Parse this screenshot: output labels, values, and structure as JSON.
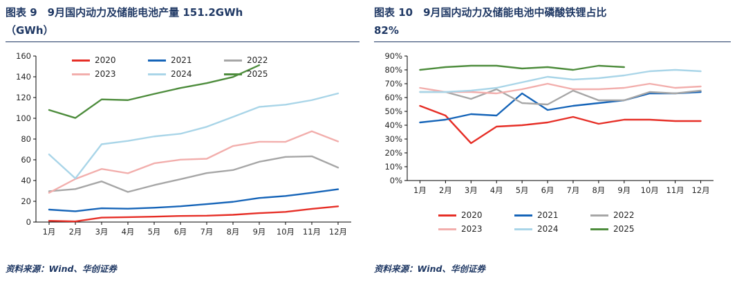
{
  "page": {
    "background": "#ffffff"
  },
  "colors": {
    "title_navy": "#1F3864",
    "axis_text": "#262626",
    "axis_line": "#000000"
  },
  "charts": [
    {
      "title_line1": "图表 9　9月国内动力及储能电池产量 151.2GWh",
      "title_line2": "（GWh）",
      "source": "资料来源：Wind、华创证券",
      "chart_data": {
        "type": "line",
        "categories": [
          "1月",
          "2月",
          "3月",
          "4月",
          "5月",
          "6月",
          "7月",
          "8月",
          "9月",
          "10月",
          "11月",
          "12月"
        ],
        "ylim": [
          0,
          160
        ],
        "y_ticks": [
          0,
          20,
          40,
          60,
          80,
          100,
          120,
          140,
          160
        ],
        "y_tick_labels": [
          "0",
          "20",
          "40",
          "60",
          "80",
          "100",
          "120",
          "140",
          "160"
        ],
        "grid": false,
        "legend_position": "top-inside",
        "series": [
          {
            "name": "2020",
            "color": "#E62E26",
            "values": [
              1.2,
              0.6,
              4.3,
              4.7,
              5.2,
              5.9,
              6.1,
              7.0,
              8.6,
              9.8,
              12.7,
              15.1
            ]
          },
          {
            "name": "2021",
            "color": "#1564B8",
            "values": [
              12.0,
              10.4,
              13.3,
              12.9,
              13.8,
              15.2,
              17.3,
              19.5,
              23.2,
              25.1,
              28.2,
              31.6
            ]
          },
          {
            "name": "2022",
            "color": "#A6A6A6",
            "values": [
              29.7,
              31.8,
              39.2,
              29.0,
              35.6,
              41.3,
              47.2,
              50.1,
              58.1,
              62.8,
              63.4,
              52.5
            ]
          },
          {
            "name": "2023",
            "color": "#F2AEAC",
            "values": [
              28.2,
              41.5,
              51.2,
              47.0,
              56.6,
              60.1,
              61.0,
              73.3,
              77.4,
              77.3,
              87.5,
              77.7
            ]
          },
          {
            "name": "2024",
            "color": "#A9D5E8",
            "values": [
              65.2,
              42.1,
              75.0,
              78.2,
              82.5,
              85.1,
              91.8,
              101.3,
              111.0,
              113.1,
              117.5,
              124.0
            ]
          },
          {
            "name": "2025",
            "color": "#4D8C3C",
            "values": [
              108.0,
              100.3,
              118.2,
              117.5,
              123.5,
              129.2,
              133.9,
              139.8,
              151.2,
              null,
              null,
              null
            ]
          }
        ]
      }
    },
    {
      "title_line1": "图表 10　9月国内动力及储能电池中磷酸铁锂占比",
      "title_line2": "82%",
      "source": "资料来源：Wind、华创证券",
      "chart_data": {
        "type": "line",
        "categories": [
          "1月",
          "2月",
          "3月",
          "4月",
          "5月",
          "6月",
          "7月",
          "8月",
          "9月",
          "10月",
          "11月",
          "12月"
        ],
        "ylim": [
          0,
          90
        ],
        "y_ticks": [
          0,
          10,
          20,
          30,
          40,
          50,
          60,
          70,
          80,
          90
        ],
        "y_tick_labels": [
          "0%",
          "10%",
          "20%",
          "30%",
          "40%",
          "50%",
          "60%",
          "70%",
          "80%",
          "90%"
        ],
        "grid": false,
        "legend_position": "bottom",
        "series": [
          {
            "name": "2020",
            "color": "#E62E26",
            "values": [
              54,
              47,
              27,
              39,
              40,
              42,
              46,
              41,
              44,
              44,
              43,
              43
            ]
          },
          {
            "name": "2021",
            "color": "#1564B8",
            "values": [
              42,
              44,
              48,
              47,
              63,
              51,
              54,
              56,
              58,
              63,
              63,
              64
            ]
          },
          {
            "name": "2022",
            "color": "#A6A6A6",
            "values": [
              64,
              64,
              59,
              66,
              56,
              55,
              65,
              58,
              58,
              64,
              63,
              65
            ]
          },
          {
            "name": "2023",
            "color": "#F2AEAC",
            "values": [
              67,
              64,
              64,
              63,
              66,
              70,
              66,
              66,
              67,
              70,
              67,
              68
            ]
          },
          {
            "name": "2024",
            "color": "#A9D5E8",
            "values": [
              64,
              64,
              65,
              67,
              71,
              75,
              73,
              74,
              76,
              79,
              80,
              79
            ]
          },
          {
            "name": "2025",
            "color": "#4D8C3C",
            "values": [
              80,
              82,
              83,
              83,
              81,
              82,
              80,
              83,
              82,
              null,
              null,
              null
            ]
          }
        ]
      }
    }
  ]
}
